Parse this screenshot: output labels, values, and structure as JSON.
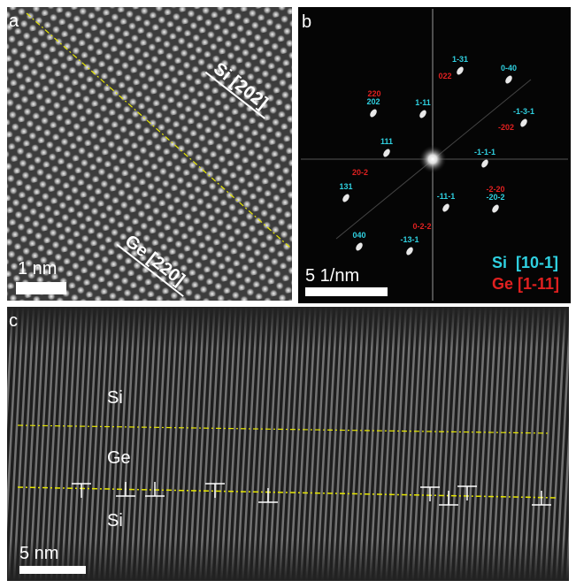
{
  "panels": [
    {
      "label": "a",
      "annotations": [
        "Si [202]",
        "Ge [220]"
      ],
      "scale_bar": "1 nm"
    },
    {
      "label": "b",
      "spots_si": [
        "1-31",
        "0-40",
        "202",
        "1-11",
        "-1-3-1",
        "111",
        "-1-1-1",
        "131",
        "-11-1",
        "-20-2",
        "040",
        "-13-1"
      ],
      "spots_ge": [
        "022",
        "220",
        "-202",
        "20-2",
        "-2-20",
        "0-2-2"
      ],
      "scale_bar": "5 1/nm",
      "legend": [
        "Si  [10-1]",
        "Ge [1-11]"
      ]
    },
    {
      "label": "c",
      "regions": [
        "Si",
        "Ge",
        "Si"
      ],
      "scale_bar": "5 nm"
    }
  ]
}
